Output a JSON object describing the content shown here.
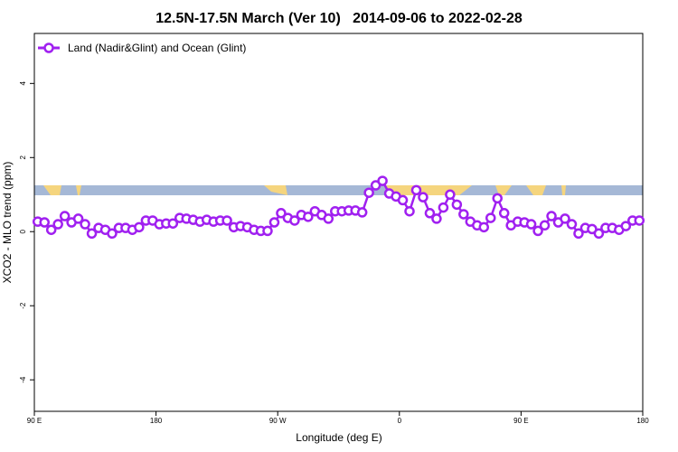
{
  "chart_data": {
    "type": "line",
    "title": "12.5N-17.5N March (Ver 10)   2014-09-06 to 2022-02-28",
    "xlabel": "Longitude (deg E)",
    "ylabel": "XCO2 - MLO trend (ppm)",
    "xlim": [
      90,
      540
    ],
    "ylim": [
      -4.85,
      5.35
    ],
    "xticks": [
      {
        "value": 90,
        "label": "90 E"
      },
      {
        "value": 180,
        "label": "180"
      },
      {
        "value": 270,
        "label": "90 W"
      },
      {
        "value": 360,
        "label": "0"
      },
      {
        "value": 450,
        "label": "90 E"
      },
      {
        "value": 540,
        "label": "180"
      }
    ],
    "yticks": [
      -4,
      -2,
      0,
      2,
      4
    ],
    "legend": "top-left",
    "x": [
      92.5,
      97.5,
      102.5,
      107.5,
      112.5,
      117.5,
      122.5,
      127.5,
      132.5,
      137.5,
      142.5,
      147.5,
      152.5,
      157.5,
      162.5,
      167.5,
      172.5,
      177.5,
      182.5,
      187.5,
      192.5,
      197.5,
      202.5,
      207.5,
      212.5,
      217.5,
      222.5,
      227.5,
      232.5,
      237.5,
      242.5,
      247.5,
      252.5,
      257.5,
      262.5,
      267.5,
      272.5,
      277.5,
      282.5,
      287.5,
      292.5,
      297.5,
      302.5,
      307.5,
      312.5,
      317.5,
      322.5,
      327.5,
      332.5,
      337.5,
      342.5,
      347.5,
      352.5,
      357.5,
      362.5,
      367.5,
      372.5,
      377.5,
      382.5,
      387.5,
      392.5,
      397.5,
      402.5,
      407.5,
      412.5,
      417.5,
      422.5,
      427.5,
      432.5,
      437.5,
      442.5,
      447.5,
      452.5,
      457.5,
      462.5,
      467.5,
      472.5,
      477.5,
      482.5,
      487.5,
      492.5,
      497.5,
      502.5,
      507.5,
      512.5,
      517.5,
      522.5,
      527.5,
      532.5,
      537.5
    ],
    "series": [
      {
        "name": "Land (Nadir&Glint) and Ocean (Glint)",
        "color": "#a020f0",
        "values": [
          0.27,
          0.25,
          0.05,
          0.2,
          0.42,
          0.25,
          0.35,
          0.2,
          -0.05,
          0.1,
          0.05,
          -0.05,
          0.1,
          0.1,
          0.05,
          0.12,
          0.3,
          0.3,
          0.2,
          0.22,
          0.22,
          0.37,
          0.35,
          0.32,
          0.27,
          0.32,
          0.27,
          0.3,
          0.3,
          0.12,
          0.15,
          0.12,
          0.05,
          0.02,
          0.02,
          0.25,
          0.5,
          0.37,
          0.3,
          0.45,
          0.4,
          0.55,
          0.45,
          0.35,
          0.55,
          0.55,
          0.57,
          0.57,
          0.52,
          1.05,
          1.25,
          1.37,
          1.03,
          0.95,
          0.85,
          0.55,
          1.12,
          0.93,
          0.5,
          0.35,
          0.65,
          1.0,
          0.73,
          0.47,
          0.27,
          0.17,
          0.12,
          0.37,
          0.9,
          0.5,
          0.17,
          0.27,
          0.25,
          0.2,
          0.02,
          0.17,
          0.42,
          0.25,
          0.35,
          0.2,
          -0.05,
          0.1,
          0.07,
          -0.05,
          0.1,
          0.1,
          0.05,
          0.15,
          0.3,
          0.3
        ]
      }
    ]
  }
}
